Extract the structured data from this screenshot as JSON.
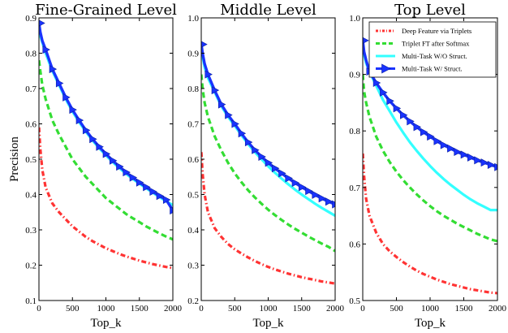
{
  "figure": {
    "ylabel": "Precision",
    "colors": {
      "deep_triplet": "#ff3333",
      "triplet_ft": "#33dd33",
      "mt_wo": "#33ffff",
      "mt_w": "#1a33ff"
    },
    "legend": {
      "position": "top-right of third panel",
      "entries": [
        {
          "name": "Deep Feature via Triplets",
          "style": "dash-dot",
          "color": "#ff3333"
        },
        {
          "name": "Triplet FT after Softmax",
          "style": "dashed",
          "color": "#33dd33"
        },
        {
          "name": "Multi-Task W/O Struct.",
          "style": "solid",
          "color": "#33ffff"
        },
        {
          "name": "Multi-Task W/ Struct.",
          "style": "solid-triangle",
          "color": "#1a33ff"
        }
      ]
    }
  },
  "chart_data": [
    {
      "type": "line",
      "title": "Fine-Grained Level",
      "xlabel": "Top_k",
      "ylabel": "Precision",
      "xlim": [
        0,
        2000
      ],
      "ylim": [
        0.1,
        0.9
      ],
      "xticks": [
        "0",
        "500",
        "1000",
        "1500",
        "2000"
      ],
      "yticks": [
        "0.1",
        "0.2",
        "0.3",
        "0.4",
        "0.5",
        "0.6",
        "0.7",
        "0.8",
        "0.9"
      ],
      "grid": false,
      "x": [
        1,
        20,
        50,
        100,
        200,
        300,
        400,
        500,
        600,
        700,
        800,
        900,
        1000,
        1100,
        1200,
        1300,
        1400,
        1500,
        1600,
        1700,
        1800,
        1900,
        2000
      ],
      "series": [
        {
          "name": "Deep Feature via Triplets",
          "values": [
            0.59,
            0.53,
            0.47,
            0.42,
            0.375,
            0.35,
            0.33,
            0.31,
            0.295,
            0.28,
            0.268,
            0.258,
            0.248,
            0.24,
            0.232,
            0.225,
            0.219,
            0.213,
            0.208,
            0.203,
            0.199,
            0.195,
            0.192
          ]
        },
        {
          "name": "Triplet FT after Softmax",
          "values": [
            0.78,
            0.75,
            0.71,
            0.67,
            0.61,
            0.57,
            0.535,
            0.5,
            0.475,
            0.45,
            0.43,
            0.41,
            0.39,
            0.375,
            0.36,
            0.345,
            0.333,
            0.322,
            0.31,
            0.3,
            0.29,
            0.281,
            0.273
          ]
        },
        {
          "name": "Multi-Task W/O Struct.",
          "values": [
            0.87,
            0.85,
            0.83,
            0.8,
            0.75,
            0.71,
            0.67,
            0.635,
            0.605,
            0.578,
            0.553,
            0.531,
            0.511,
            0.492,
            0.475,
            0.459,
            0.444,
            0.431,
            0.418,
            0.405,
            0.393,
            0.381,
            0.37
          ]
        },
        {
          "name": "Multi-Task W/ Struct.",
          "values": [
            0.885,
            0.86,
            0.835,
            0.81,
            0.755,
            0.715,
            0.675,
            0.64,
            0.61,
            0.582,
            0.557,
            0.535,
            0.515,
            0.496,
            0.479,
            0.463,
            0.448,
            0.434,
            0.421,
            0.408,
            0.396,
            0.385,
            0.355
          ]
        }
      ]
    },
    {
      "type": "line",
      "title": "Middle Level",
      "xlabel": "Top_k",
      "ylabel": "",
      "xlim": [
        0,
        2000
      ],
      "ylim": [
        0.2,
        1.0
      ],
      "xticks": [
        "0",
        "500",
        "1000",
        "1500",
        "2000"
      ],
      "yticks": [
        "0.2",
        "0.3",
        "0.4",
        "0.5",
        "0.6",
        "0.7",
        "0.8",
        "0.9",
        "1.0"
      ],
      "grid": false,
      "x": [
        1,
        20,
        50,
        100,
        200,
        300,
        400,
        500,
        600,
        700,
        800,
        900,
        1000,
        1100,
        1200,
        1300,
        1400,
        1500,
        1600,
        1700,
        1800,
        1900,
        2000
      ],
      "series": [
        {
          "name": "Deep Feature via Triplets",
          "values": [
            0.62,
            0.56,
            0.5,
            0.45,
            0.405,
            0.38,
            0.36,
            0.345,
            0.333,
            0.322,
            0.312,
            0.303,
            0.295,
            0.288,
            0.282,
            0.276,
            0.271,
            0.266,
            0.262,
            0.258,
            0.254,
            0.251,
            0.248
          ]
        },
        {
          "name": "Triplet FT after Softmax",
          "values": [
            0.84,
            0.8,
            0.76,
            0.72,
            0.665,
            0.625,
            0.59,
            0.56,
            0.535,
            0.512,
            0.492,
            0.474,
            0.457,
            0.442,
            0.428,
            0.415,
            0.403,
            0.392,
            0.381,
            0.371,
            0.361,
            0.352,
            0.34
          ]
        },
        {
          "name": "Multi-Task W/O Struct.",
          "values": [
            0.91,
            0.89,
            0.86,
            0.83,
            0.79,
            0.75,
            0.72,
            0.695,
            0.668,
            0.643,
            0.62,
            0.6,
            0.58,
            0.562,
            0.545,
            0.529,
            0.514,
            0.5,
            0.487,
            0.474,
            0.462,
            0.451,
            0.44
          ]
        },
        {
          "name": "Multi-Task W/ Struct.",
          "values": [
            0.925,
            0.9,
            0.87,
            0.84,
            0.795,
            0.755,
            0.725,
            0.7,
            0.673,
            0.648,
            0.626,
            0.607,
            0.59,
            0.574,
            0.56,
            0.546,
            0.533,
            0.521,
            0.51,
            0.499,
            0.489,
            0.48,
            0.472
          ]
        }
      ]
    },
    {
      "type": "line",
      "title": "Top Level",
      "xlabel": "Top_k",
      "ylabel": "",
      "xlim": [
        0,
        2000
      ],
      "ylim": [
        0.5,
        1.0
      ],
      "xticks": [
        "0",
        "500",
        "1000",
        "1500",
        "2000"
      ],
      "yticks": [
        "0.5",
        "0.6",
        "0.7",
        "0.8",
        "0.9",
        "1.0"
      ],
      "grid": false,
      "x": [
        1,
        20,
        50,
        100,
        200,
        300,
        400,
        500,
        600,
        700,
        800,
        900,
        1000,
        1100,
        1200,
        1300,
        1400,
        1500,
        1600,
        1700,
        1800,
        1900,
        2000
      ],
      "series": [
        {
          "name": "Deep Feature via Triplets",
          "values": [
            0.76,
            0.72,
            0.68,
            0.65,
            0.62,
            0.6,
            0.587,
            0.577,
            0.568,
            0.56,
            0.553,
            0.547,
            0.542,
            0.537,
            0.533,
            0.529,
            0.526,
            0.523,
            0.52,
            0.518,
            0.516,
            0.514,
            0.513
          ]
        },
        {
          "name": "Triplet FT after Softmax",
          "values": [
            0.9,
            0.87,
            0.85,
            0.825,
            0.79,
            0.765,
            0.745,
            0.728,
            0.713,
            0.7,
            0.688,
            0.677,
            0.667,
            0.658,
            0.65,
            0.643,
            0.636,
            0.63,
            0.624,
            0.618,
            0.613,
            0.608,
            0.605
          ]
        },
        {
          "name": "Multi-Task W/O Struct.",
          "values": [
            0.95,
            0.935,
            0.92,
            0.905,
            0.88,
            0.855,
            0.835,
            0.815,
            0.797,
            0.78,
            0.765,
            0.751,
            0.738,
            0.726,
            0.715,
            0.705,
            0.696,
            0.687,
            0.679,
            0.672,
            0.666,
            0.66,
            0.66
          ]
        },
        {
          "name": "Multi-Task W/ Struct.",
          "values": [
            0.96,
            0.94,
            0.925,
            0.905,
            0.885,
            0.868,
            0.853,
            0.84,
            0.828,
            0.817,
            0.807,
            0.798,
            0.79,
            0.782,
            0.775,
            0.769,
            0.763,
            0.758,
            0.753,
            0.748,
            0.744,
            0.74,
            0.736
          ]
        }
      ]
    }
  ]
}
